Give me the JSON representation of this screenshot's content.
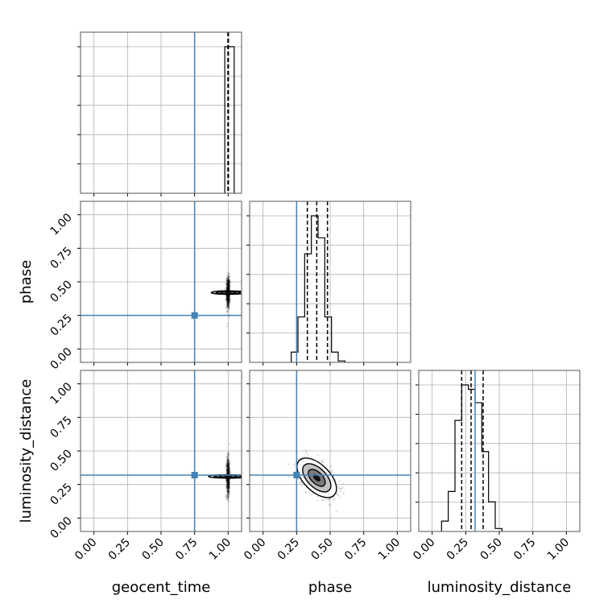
{
  "chart_data": {
    "type": "corner",
    "title": "",
    "parameters": [
      "geocent_time",
      "phase",
      "luminosity_distance"
    ],
    "axis_range": [
      -0.1,
      1.1
    ],
    "tick_values": [
      0.0,
      0.25,
      0.5,
      0.75,
      1.0
    ],
    "tick_labels": [
      "0.00",
      "0.25",
      "0.50",
      "0.75",
      "1.00"
    ],
    "grid": true,
    "truth_color": "#4682b4",
    "truths": {
      "geocent_time": 0.75,
      "phase": 0.25,
      "luminosity_distance": 0.32
    },
    "quantiles": {
      "geocent_time": [
        0.998,
        1.0,
        1.002
      ],
      "phase": [
        0.33,
        0.4,
        0.48
      ],
      "luminosity_distance": [
        0.22,
        0.29,
        0.38
      ]
    },
    "histograms": {
      "geocent_time": {
        "bins": [
          [
            0.975,
            1.045,
            1.0
          ]
        ]
      },
      "phase": {
        "bins": [
          [
            0.21,
            0.26,
            0.07
          ],
          [
            0.26,
            0.31,
            0.31
          ],
          [
            0.31,
            0.36,
            0.74
          ],
          [
            0.36,
            0.41,
            1.0
          ],
          [
            0.41,
            0.46,
            0.85
          ],
          [
            0.46,
            0.51,
            0.31
          ],
          [
            0.51,
            0.56,
            0.07
          ],
          [
            0.56,
            0.61,
            0.01
          ]
        ]
      },
      "luminosity_distance": {
        "bins": [
          [
            0.07,
            0.12,
            0.07
          ],
          [
            0.12,
            0.17,
            0.27
          ],
          [
            0.17,
            0.22,
            0.75
          ],
          [
            0.22,
            0.27,
            0.99
          ],
          [
            0.27,
            0.32,
            0.96
          ],
          [
            0.32,
            0.37,
            0.87
          ],
          [
            0.37,
            0.42,
            0.54
          ],
          [
            0.42,
            0.47,
            0.2
          ],
          [
            0.47,
            0.52,
            0.02
          ]
        ]
      }
    },
    "posterior_2d": {
      "geocent_time|phase": {
        "center": [
          1.0,
          0.42
        ],
        "sigma": [
          0.006,
          0.06
        ],
        "spread": [
          0.012,
          0.23
        ]
      },
      "geocent_time|luminosity_distance": {
        "center": [
          1.0,
          0.31
        ],
        "sigma": [
          0.006,
          0.07
        ],
        "spread": [
          0.012,
          0.24
        ]
      },
      "phase|luminosity_distance": {
        "center": [
          0.4,
          0.3
        ],
        "sigma": [
          0.07,
          0.07
        ],
        "correlation": -0.55
      }
    }
  }
}
